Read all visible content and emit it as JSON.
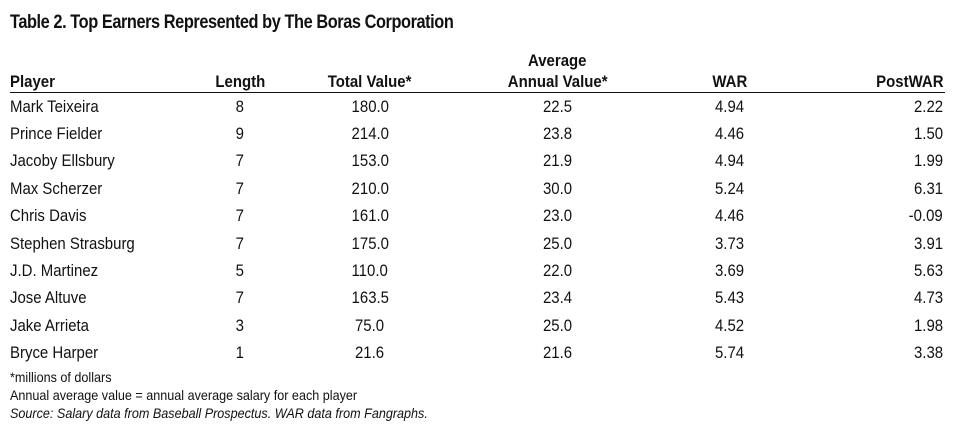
{
  "title": "Table 2.  Top Earners Represented by The Boras Corporation",
  "table": {
    "headers": {
      "player": "Player",
      "length": "Length",
      "total_value": "Total Value*",
      "aav_line1": "Average",
      "aav_line2": "Annual Value*",
      "war": "WAR",
      "postwar": "PostWAR"
    },
    "rows": [
      {
        "player": "Mark Teixeira",
        "length": "8",
        "total": "180.0",
        "aav": "22.5",
        "war": "4.94",
        "postwar": "2.22"
      },
      {
        "player": "Prince Fielder",
        "length": "9",
        "total": "214.0",
        "aav": "23.8",
        "war": "4.46",
        "postwar": "1.50"
      },
      {
        "player": "Jacoby Ellsbury",
        "length": "7",
        "total": "153.0",
        "aav": "21.9",
        "war": "4.94",
        "postwar": "1.99"
      },
      {
        "player": "Max Scherzer",
        "length": "7",
        "total": "210.0",
        "aav": "30.0",
        "war": "5.24",
        "postwar": "6.31"
      },
      {
        "player": "Chris Davis",
        "length": "7",
        "total": "161.0",
        "aav": "23.0",
        "war": "4.46",
        "postwar": "-0.09"
      },
      {
        "player": "Stephen Strasburg",
        "length": "7",
        "total": "175.0",
        "aav": "25.0",
        "war": "3.73",
        "postwar": "3.91"
      },
      {
        "player": "J.D. Martinez",
        "length": "5",
        "total": "110.0",
        "aav": "22.0",
        "war": "3.69",
        "postwar": "5.63"
      },
      {
        "player": "Jose Altuve",
        "length": "7",
        "total": "163.5",
        "aav": "23.4",
        "war": "5.43",
        "postwar": "4.73"
      },
      {
        "player": "Jake Arrieta",
        "length": "3",
        "total": "75.0",
        "aav": "25.0",
        "war": "4.52",
        "postwar": "1.98"
      },
      {
        "player": "Bryce Harper",
        "length": "1",
        "total": "21.6",
        "aav": "21.6",
        "war": "5.74",
        "postwar": "3.38"
      }
    ]
  },
  "notes": {
    "millions": "*millions of dollars",
    "aav_def": "Annual average value = annual average salary for each player",
    "source": "Source: Salary data from Baseball Prospectus. WAR data from Fangraphs."
  }
}
